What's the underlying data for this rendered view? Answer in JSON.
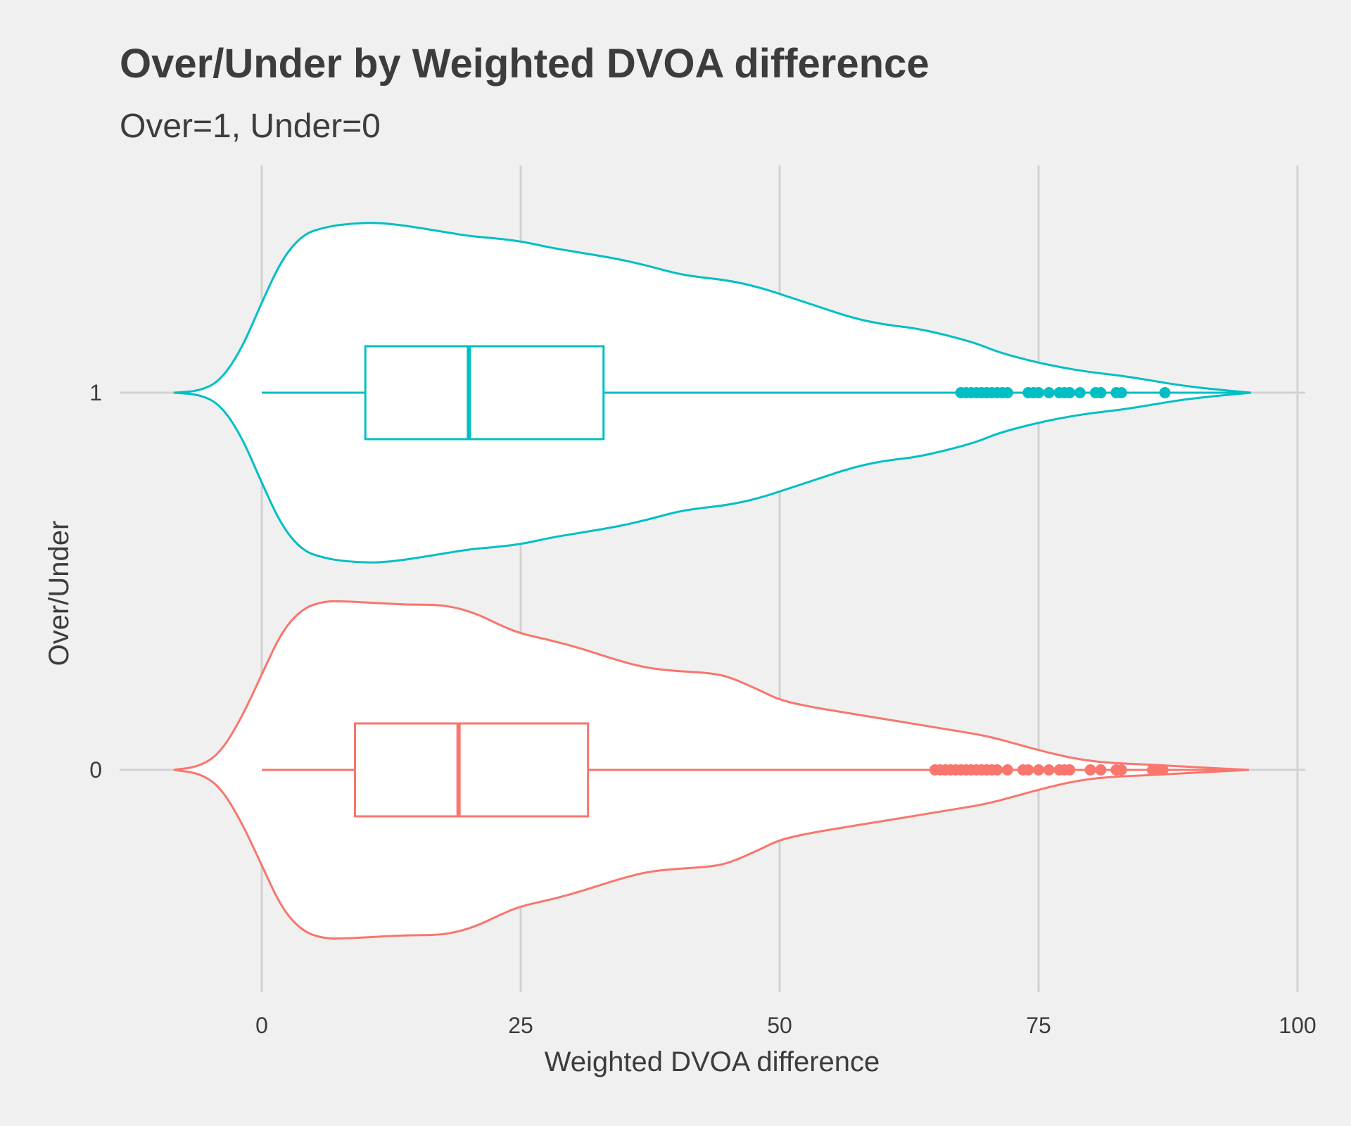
{
  "chart_data": {
    "type": "violin",
    "title": "Over/Under by Weighted DVOA difference",
    "subtitle": "Over=1, Under=0",
    "xlabel": "Weighted DVOA difference",
    "ylabel": "Over/Under",
    "xlim": [
      -16,
      101
    ],
    "x_ticks": [
      "0",
      "25",
      "50",
      "75",
      "100"
    ],
    "x_tick_values": [
      0,
      25,
      50,
      75,
      100
    ],
    "categories": [
      "1",
      "0"
    ],
    "grid": true,
    "series": [
      {
        "category": "1",
        "color": "#00BFC4",
        "box": {
          "whisker_low": 0,
          "q1": 10,
          "median": 20,
          "q3": 33,
          "whisker_high": 67.5
        },
        "outliers": [
          67.5,
          68,
          68.5,
          69,
          69.5,
          70,
          70.5,
          71,
          71.5,
          72,
          74,
          74.5,
          75,
          76,
          77,
          77.5,
          78,
          79,
          80.5,
          81,
          82.5,
          83,
          87.2
        ],
        "density": [
          [
            -8.5,
            0.0
          ],
          [
            -6,
            0.01
          ],
          [
            -4,
            0.07
          ],
          [
            -2,
            0.25
          ],
          [
            0,
            0.53
          ],
          [
            2,
            0.79
          ],
          [
            4,
            0.93
          ],
          [
            6,
            0.97
          ],
          [
            8,
            0.99
          ],
          [
            11,
            1.0
          ],
          [
            14,
            0.98
          ],
          [
            17,
            0.95
          ],
          [
            20,
            0.92
          ],
          [
            22,
            0.91
          ],
          [
            25,
            0.89
          ],
          [
            28,
            0.85
          ],
          [
            30,
            0.83
          ],
          [
            34,
            0.79
          ],
          [
            37,
            0.75
          ],
          [
            40,
            0.7
          ],
          [
            42,
            0.68
          ],
          [
            45,
            0.66
          ],
          [
            48,
            0.62
          ],
          [
            51,
            0.56
          ],
          [
            54,
            0.5
          ],
          [
            57,
            0.44
          ],
          [
            60,
            0.4
          ],
          [
            63,
            0.38
          ],
          [
            66,
            0.34
          ],
          [
            69,
            0.29
          ],
          [
            71,
            0.24
          ],
          [
            74,
            0.19
          ],
          [
            77,
            0.15
          ],
          [
            80,
            0.12
          ],
          [
            83,
            0.1
          ],
          [
            86,
            0.07
          ],
          [
            89,
            0.04
          ],
          [
            92,
            0.02
          ],
          [
            95.5,
            0.0
          ]
        ]
      },
      {
        "category": "0",
        "color": "#F8766D",
        "box": {
          "whisker_low": 0,
          "q1": 9,
          "median": 19,
          "q3": 31.5,
          "whisker_high": 65
        },
        "outliers": [
          65,
          65.5,
          66,
          66.5,
          67,
          67.5,
          68,
          68.5,
          69,
          69.5,
          70,
          70.5,
          71,
          72,
          73.5,
          74,
          75,
          76,
          77,
          77.5,
          78,
          80,
          81,
          82.5,
          83,
          86,
          86.5,
          87
        ],
        "density": [
          [
            -8.5,
            0.0
          ],
          [
            -6,
            0.02
          ],
          [
            -4,
            0.1
          ],
          [
            -2,
            0.3
          ],
          [
            0,
            0.56
          ],
          [
            2,
            0.82
          ],
          [
            4,
            0.95
          ],
          [
            6,
            0.99
          ],
          [
            8,
            0.99
          ],
          [
            11,
            0.98
          ],
          [
            14,
            0.97
          ],
          [
            17,
            0.97
          ],
          [
            19,
            0.95
          ],
          [
            21,
            0.91
          ],
          [
            23,
            0.85
          ],
          [
            25,
            0.8
          ],
          [
            28,
            0.76
          ],
          [
            31,
            0.71
          ],
          [
            34,
            0.65
          ],
          [
            37,
            0.6
          ],
          [
            40,
            0.58
          ],
          [
            43,
            0.57
          ],
          [
            45,
            0.55
          ],
          [
            48,
            0.47
          ],
          [
            50,
            0.41
          ],
          [
            53,
            0.37
          ],
          [
            56,
            0.34
          ],
          [
            60,
            0.3
          ],
          [
            63,
            0.27
          ],
          [
            66,
            0.24
          ],
          [
            70,
            0.2
          ],
          [
            73,
            0.15
          ],
          [
            76,
            0.1
          ],
          [
            79,
            0.06
          ],
          [
            82,
            0.04
          ],
          [
            86,
            0.03
          ],
          [
            89,
            0.02
          ],
          [
            92,
            0.01
          ],
          [
            95.3,
            0.0
          ]
        ]
      }
    ]
  }
}
